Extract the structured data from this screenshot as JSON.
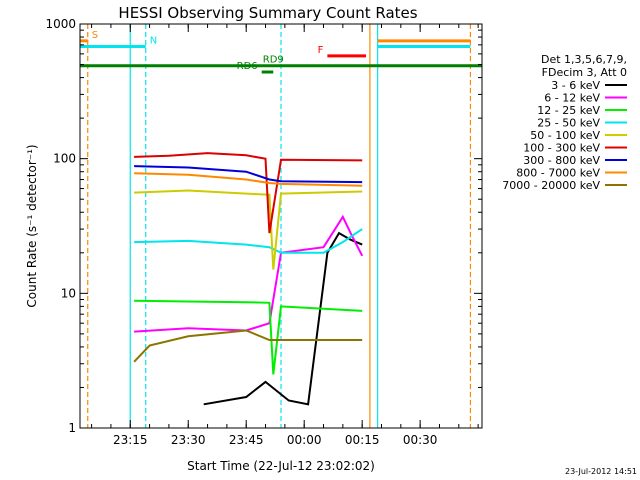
{
  "chart_data": {
    "type": "line",
    "title": "HESSI Observing Summary Count Rates",
    "xlabel": "Start Time (22-Jul-12 23:02:02)",
    "ylabel": "Count Rate (s⁻¹ detector⁻¹)",
    "yscale": "log",
    "ylim": [
      1,
      1000
    ],
    "xlim": [
      "23:02",
      "00:46"
    ],
    "x_ticks": [
      "23:15",
      "23:30",
      "23:45",
      "00:00",
      "00:15",
      "00:30"
    ],
    "y_ticks": [
      "1",
      "10",
      "100",
      "1000"
    ],
    "grid": false,
    "legend_position": "right",
    "legend_header": [
      "Det 1,3,5,6,7,9,",
      "FDecim 3, Att 0"
    ],
    "series": [
      {
        "name": "3 - 6 keV",
        "color": "#000000",
        "points": [
          [
            "23:34",
            1.5
          ],
          [
            "23:45",
            1.7
          ],
          [
            "23:50",
            2.2
          ],
          [
            "23:56",
            1.6
          ],
          [
            "00:01",
            1.5
          ],
          [
            "00:06",
            20
          ],
          [
            "00:09",
            28
          ],
          [
            "00:12",
            25
          ],
          [
            "00:15",
            23
          ]
        ]
      },
      {
        "name": "6 - 12 keV",
        "color": "#ff00ff",
        "points": [
          [
            "23:16",
            5.2
          ],
          [
            "23:30",
            5.5
          ],
          [
            "23:45",
            5.3
          ],
          [
            "23:51",
            6
          ],
          [
            "23:54",
            20
          ],
          [
            "00:05",
            22
          ],
          [
            "00:08",
            30
          ],
          [
            "00:10",
            37
          ],
          [
            "00:12",
            28
          ],
          [
            "00:15",
            19
          ]
        ]
      },
      {
        "name": "12 - 25 keV",
        "color": "#00ee00",
        "points": [
          [
            "23:16",
            8.8
          ],
          [
            "23:30",
            8.7
          ],
          [
            "23:45",
            8.6
          ],
          [
            "23:51",
            8.5
          ],
          [
            "23:52",
            2.5
          ],
          [
            "23:54",
            8.0
          ],
          [
            "00:15",
            7.4
          ]
        ]
      },
      {
        "name": "25 - 50 keV",
        "color": "#00e5ee",
        "points": [
          [
            "23:16",
            24
          ],
          [
            "23:30",
            24.5
          ],
          [
            "23:45",
            23
          ],
          [
            "23:51",
            22
          ],
          [
            "23:54",
            20
          ],
          [
            "00:05",
            20
          ],
          [
            "00:10",
            24
          ],
          [
            "00:15",
            30
          ]
        ]
      },
      {
        "name": "50 - 100 keV",
        "color": "#cccc00",
        "points": [
          [
            "23:16",
            56
          ],
          [
            "23:30",
            58
          ],
          [
            "23:45",
            55
          ],
          [
            "23:51",
            54
          ],
          [
            "23:52",
            15
          ],
          [
            "23:54",
            55
          ],
          [
            "00:15",
            57
          ]
        ]
      },
      {
        "name": "100 - 300 keV",
        "color": "#dd0000",
        "points": [
          [
            "23:16",
            103
          ],
          [
            "23:25",
            105
          ],
          [
            "23:35",
            110
          ],
          [
            "23:45",
            106
          ],
          [
            "23:50",
            100
          ],
          [
            "23:51",
            28
          ],
          [
            "23:54",
            98
          ],
          [
            "00:15",
            97
          ]
        ]
      },
      {
        "name": "300 - 800 keV",
        "color": "#0000dd",
        "points": [
          [
            "23:16",
            88
          ],
          [
            "23:30",
            86
          ],
          [
            "23:45",
            80
          ],
          [
            "23:51",
            70
          ],
          [
            "23:54",
            68
          ],
          [
            "00:15",
            67
          ]
        ]
      },
      {
        "name": "800 - 7000 keV",
        "color": "#ff8800",
        "points": [
          [
            "23:16",
            78
          ],
          [
            "23:30",
            76
          ],
          [
            "23:45",
            70
          ],
          [
            "23:51",
            66
          ],
          [
            "23:54",
            65
          ],
          [
            "00:15",
            63
          ]
        ]
      },
      {
        "name": "7000 - 20000 keV",
        "color": "#8b7500",
        "points": [
          [
            "23:16",
            3.1
          ],
          [
            "23:20",
            4.1
          ],
          [
            "23:30",
            4.8
          ],
          [
            "23:45",
            5.3
          ],
          [
            "23:51",
            4.5
          ],
          [
            "00:00",
            4.5
          ],
          [
            "00:15",
            4.5
          ]
        ]
      }
    ],
    "markers": [
      {
        "label": "S",
        "color": "#ff8800",
        "value": 750,
        "from": "23:02",
        "to": "23:04"
      },
      {
        "label": "N",
        "color": "#00e5ee",
        "value": 680,
        "from": "23:02",
        "to": "23:19"
      },
      {
        "label": "F",
        "color": "#ff0000",
        "value": 580,
        "from": "00:06",
        "to": "00:16"
      },
      {
        "label": "RD9",
        "color": "#008000",
        "value": 490,
        "from": "23:02",
        "to": "00:46"
      },
      {
        "label": "RD6",
        "color": "#008000",
        "value": 440,
        "from": "23:49",
        "to": "23:52"
      }
    ],
    "vertical_markers": [
      {
        "time": "23:04",
        "color": "#ff8800",
        "style": "dashed"
      },
      {
        "time": "23:15",
        "color": "#00e5ee",
        "style": "solid"
      },
      {
        "time": "23:19",
        "color": "#00e5ee",
        "style": "dashed"
      },
      {
        "time": "23:54",
        "color": "#00e5ee",
        "style": "dashed"
      },
      {
        "time": "00:17",
        "color": "#ff8800",
        "style": "solid"
      },
      {
        "time": "00:19",
        "color": "#00e5ee",
        "style": "solid"
      },
      {
        "time": "00:43",
        "color": "#ff8800",
        "style": "dashed"
      }
    ],
    "attenuator_bars": [
      {
        "color": "#ff8800",
        "value": 750,
        "from": "00:19",
        "to": "00:43"
      },
      {
        "color": "#00e5ee",
        "value": 680,
        "from": "00:19",
        "to": "00:43"
      }
    ]
  },
  "timestamp": "23-Jul-2012 14:51"
}
